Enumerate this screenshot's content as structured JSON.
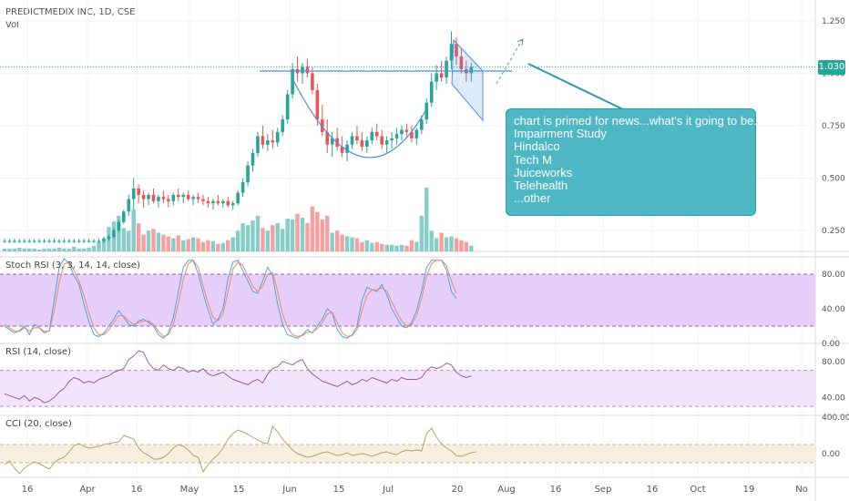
{
  "header": {
    "symbol_line": "PREDICTMEDIX INC, 1D, CSE",
    "volume_label": "Vol",
    "last_price": "1.030"
  },
  "annotation": {
    "lines": [
      "chart is primed for news...what's it going to be...",
      "Impairment Study",
      "Hindalco",
      "Tech M",
      "Juiceworks",
      "Telehealth",
      "...other"
    ]
  },
  "time_axis": {
    "labels": [
      "16",
      "Apr",
      "16",
      "May",
      "15",
      "Jun",
      "15",
      "Jul",
      "20",
      "Aug",
      "16",
      "Sep",
      "16",
      "Oct",
      "19",
      "No"
    ]
  },
  "colors": {
    "up": "#26a69a",
    "down": "#ef5350",
    "stoch_k": "#4aa3f0",
    "stoch_d": "#ef8a5a",
    "rsi": "#a05aa0",
    "cci": "#b5a26a",
    "band_purple": "#e6d0fb",
    "band_rsi": "#f1e4fb",
    "band_cci": "#f7efdf",
    "annotation": "#4db8c4"
  },
  "chart_data": [
    {
      "type": "candlestick",
      "title": "PREDICTMEDIX INC, 1D, CSE",
      "y_ticks": [
        "1.250",
        "1.000",
        "0.750",
        "0.500",
        "0.250"
      ],
      "ylim": [
        0.15,
        1.35
      ],
      "last_value": 1.03,
      "ohlc": [
        [
          0.2,
          0.21,
          0.19,
          0.2
        ],
        [
          0.2,
          0.21,
          0.19,
          0.2
        ],
        [
          0.2,
          0.21,
          0.19,
          0.2
        ],
        [
          0.2,
          0.21,
          0.19,
          0.2
        ],
        [
          0.2,
          0.21,
          0.19,
          0.2
        ],
        [
          0.2,
          0.21,
          0.19,
          0.2
        ],
        [
          0.2,
          0.21,
          0.19,
          0.2
        ],
        [
          0.2,
          0.21,
          0.19,
          0.2
        ],
        [
          0.2,
          0.21,
          0.19,
          0.2
        ],
        [
          0.2,
          0.21,
          0.19,
          0.2
        ],
        [
          0.2,
          0.21,
          0.19,
          0.2
        ],
        [
          0.2,
          0.21,
          0.19,
          0.2
        ],
        [
          0.2,
          0.21,
          0.19,
          0.2
        ],
        [
          0.2,
          0.21,
          0.19,
          0.2
        ],
        [
          0.2,
          0.21,
          0.19,
          0.2
        ],
        [
          0.2,
          0.21,
          0.19,
          0.2
        ],
        [
          0.2,
          0.21,
          0.19,
          0.2
        ],
        [
          0.2,
          0.21,
          0.19,
          0.2
        ],
        [
          0.2,
          0.21,
          0.19,
          0.2
        ],
        [
          0.2,
          0.21,
          0.19,
          0.2
        ],
        [
          0.2,
          0.22,
          0.19,
          0.21
        ],
        [
          0.21,
          0.23,
          0.2,
          0.22
        ],
        [
          0.22,
          0.26,
          0.21,
          0.25
        ],
        [
          0.25,
          0.3,
          0.24,
          0.29
        ],
        [
          0.29,
          0.35,
          0.28,
          0.34
        ],
        [
          0.34,
          0.42,
          0.32,
          0.4
        ],
        [
          0.4,
          0.5,
          0.35,
          0.45
        ],
        [
          0.45,
          0.47,
          0.38,
          0.42
        ],
        [
          0.42,
          0.44,
          0.36,
          0.4
        ],
        [
          0.4,
          0.43,
          0.37,
          0.42
        ],
        [
          0.42,
          0.45,
          0.38,
          0.39
        ],
        [
          0.39,
          0.42,
          0.36,
          0.41
        ],
        [
          0.41,
          0.44,
          0.38,
          0.4
        ],
        [
          0.4,
          0.42,
          0.36,
          0.39
        ],
        [
          0.39,
          0.43,
          0.37,
          0.42
        ],
        [
          0.42,
          0.45,
          0.39,
          0.41
        ],
        [
          0.41,
          0.43,
          0.38,
          0.42
        ],
        [
          0.42,
          0.44,
          0.39,
          0.4
        ],
        [
          0.4,
          0.42,
          0.37,
          0.41
        ],
        [
          0.41,
          0.43,
          0.38,
          0.4
        ],
        [
          0.4,
          0.42,
          0.37,
          0.39
        ],
        [
          0.39,
          0.41,
          0.36,
          0.38
        ],
        [
          0.38,
          0.4,
          0.35,
          0.39
        ],
        [
          0.39,
          0.42,
          0.37,
          0.38
        ],
        [
          0.38,
          0.4,
          0.36,
          0.39
        ],
        [
          0.39,
          0.41,
          0.36,
          0.37
        ],
        [
          0.37,
          0.39,
          0.35,
          0.38
        ],
        [
          0.38,
          0.44,
          0.37,
          0.43
        ],
        [
          0.43,
          0.5,
          0.41,
          0.48
        ],
        [
          0.48,
          0.58,
          0.46,
          0.56
        ],
        [
          0.56,
          0.64,
          0.53,
          0.62
        ],
        [
          0.62,
          0.72,
          0.6,
          0.7
        ],
        [
          0.7,
          0.75,
          0.64,
          0.66
        ],
        [
          0.66,
          0.71,
          0.63,
          0.68
        ],
        [
          0.68,
          0.73,
          0.64,
          0.67
        ],
        [
          0.67,
          0.74,
          0.65,
          0.72
        ],
        [
          0.72,
          0.8,
          0.7,
          0.78
        ],
        [
          0.78,
          0.92,
          0.76,
          0.9
        ],
        [
          0.9,
          1.05,
          0.88,
          1.02
        ],
        [
          1.02,
          1.08,
          0.96,
          1.0
        ],
        [
          1.0,
          1.05,
          0.95,
          1.03
        ],
        [
          1.03,
          1.07,
          0.98,
          1.0
        ],
        [
          1.0,
          1.03,
          0.9,
          0.92
        ],
        [
          0.92,
          0.95,
          0.75,
          0.78
        ],
        [
          0.78,
          0.85,
          0.7,
          0.72
        ],
        [
          0.72,
          0.78,
          0.62,
          0.66
        ],
        [
          0.66,
          0.72,
          0.6,
          0.69
        ],
        [
          0.69,
          0.74,
          0.63,
          0.65
        ],
        [
          0.65,
          0.7,
          0.6,
          0.62
        ],
        [
          0.62,
          0.68,
          0.58,
          0.66
        ],
        [
          0.66,
          0.72,
          0.64,
          0.7
        ],
        [
          0.7,
          0.75,
          0.66,
          0.68
        ],
        [
          0.68,
          0.72,
          0.63,
          0.65
        ],
        [
          0.65,
          0.7,
          0.62,
          0.68
        ],
        [
          0.68,
          0.74,
          0.66,
          0.72
        ],
        [
          0.72,
          0.76,
          0.68,
          0.7
        ],
        [
          0.7,
          0.73,
          0.64,
          0.66
        ],
        [
          0.66,
          0.7,
          0.62,
          0.68
        ],
        [
          0.68,
          0.72,
          0.64,
          0.69
        ],
        [
          0.69,
          0.74,
          0.66,
          0.71
        ],
        [
          0.71,
          0.75,
          0.68,
          0.73
        ],
        [
          0.73,
          0.76,
          0.7,
          0.72
        ],
        [
          0.72,
          0.75,
          0.67,
          0.69
        ],
        [
          0.69,
          0.74,
          0.66,
          0.73
        ],
        [
          0.73,
          0.8,
          0.71,
          0.78
        ],
        [
          0.78,
          0.88,
          0.76,
          0.86
        ],
        [
          0.86,
          1.0,
          0.84,
          0.96
        ],
        [
          0.96,
          1.04,
          0.92,
          1.0
        ],
        [
          1.0,
          1.06,
          0.96,
          0.98
        ],
        [
          0.98,
          1.08,
          0.95,
          1.06
        ],
        [
          1.06,
          1.2,
          1.02,
          1.14
        ],
        [
          1.14,
          1.17,
          1.04,
          1.08
        ],
        [
          1.08,
          1.12,
          1.0,
          1.02
        ],
        [
          1.02,
          1.06,
          0.96,
          1.0
        ],
        [
          1.0,
          1.05,
          0.96,
          1.03
        ]
      ]
    },
    {
      "type": "bar",
      "title": "Vol",
      "values": [
        3,
        3,
        3,
        4,
        3,
        3,
        3,
        2,
        3,
        3,
        3,
        4,
        3,
        3,
        5,
        3,
        3,
        4,
        6,
        10,
        14,
        26,
        32,
        38,
        25,
        22,
        45,
        30,
        18,
        22,
        24,
        20,
        18,
        16,
        14,
        17,
        12,
        13,
        15,
        14,
        10,
        12,
        11,
        8,
        9,
        12,
        15,
        22,
        30,
        28,
        33,
        38,
        25,
        22,
        28,
        30,
        24,
        35,
        34,
        40,
        36,
        30,
        48,
        42,
        34,
        38,
        20,
        22,
        18,
        16,
        15,
        14,
        10,
        12,
        9,
        10,
        8,
        7,
        7,
        6,
        7,
        6,
        12,
        10,
        38,
        68,
        22,
        14,
        20,
        15,
        16,
        14,
        12,
        10,
        6
      ]
    },
    {
      "type": "line",
      "title": "Stoch RSI (3, 3, 14, 14, close)",
      "y_ticks": [
        "80.00",
        "40.00",
        "0.00"
      ],
      "ylim": [
        0,
        100
      ],
      "bands": [
        20,
        80
      ],
      "series": [
        {
          "values": [
            20,
            16,
            12,
            15,
            20,
            10,
            22,
            18,
            12,
            15,
            50,
            88,
            98,
            92,
            78,
            68,
            45,
            25,
            10,
            8,
            12,
            20,
            28,
            38,
            30,
            22,
            20,
            26,
            28,
            24,
            20,
            10,
            6,
            12,
            30,
            60,
            88,
            96,
            96,
            80,
            58,
            38,
            22,
            28,
            40,
            75,
            94,
            96,
            84,
            72,
            60,
            58,
            72,
            88,
            78,
            45,
            22,
            10,
            8,
            6,
            10,
            16,
            12,
            20,
            28,
            40,
            35,
            16,
            8,
            6,
            10,
            20,
            50,
            65,
            62,
            60,
            68,
            56,
            40,
            30,
            20,
            18,
            24,
            38,
            60,
            88,
            96,
            96,
            96,
            85,
            60,
            52
          ]
        },
        {
          "values": [
            22,
            18,
            14,
            14,
            18,
            14,
            18,
            18,
            14,
            14,
            38,
            70,
            92,
            94,
            84,
            72,
            55,
            35,
            18,
            10,
            10,
            16,
            24,
            32,
            32,
            26,
            22,
            24,
            26,
            26,
            22,
            14,
            8,
            10,
            22,
            46,
            74,
            92,
            96,
            88,
            66,
            46,
            30,
            26,
            34,
            60,
            86,
            94,
            90,
            78,
            66,
            60,
            66,
            80,
            82,
            60,
            34,
            18,
            10,
            8,
            9,
            13,
            13,
            17,
            24,
            34,
            36,
            24,
            12,
            8,
            9,
            16,
            38,
            56,
            62,
            62,
            64,
            60,
            48,
            36,
            26,
            20,
            22,
            32,
            52,
            78,
            92,
            96,
            96,
            90,
            72,
            58
          ]
        }
      ]
    },
    {
      "type": "line",
      "title": "RSI (14, close)",
      "y_ticks": [
        "80.00",
        "40.00"
      ],
      "ylim": [
        20,
        100
      ],
      "bands": [
        30,
        70
      ],
      "series": [
        {
          "values": [
            44,
            42,
            40,
            38,
            42,
            36,
            40,
            38,
            34,
            36,
            40,
            46,
            50,
            58,
            62,
            60,
            56,
            58,
            56,
            60,
            62,
            64,
            68,
            70,
            72,
            82,
            86,
            92,
            90,
            78,
            72,
            70,
            76,
            72,
            70,
            74,
            72,
            68,
            70,
            68,
            72,
            66,
            64,
            66,
            68,
            64,
            60,
            58,
            56,
            54,
            58,
            60,
            56,
            66,
            72,
            74,
            80,
            78,
            76,
            80,
            82,
            72,
            66,
            62,
            58,
            56,
            54,
            52,
            55,
            58,
            54,
            56,
            60,
            58,
            62,
            60,
            58,
            56,
            60,
            58,
            62,
            60,
            60,
            60,
            62,
            70,
            74,
            72,
            74,
            78,
            76,
            68,
            64,
            62,
            64
          ]
        }
      ]
    },
    {
      "type": "line",
      "title": "CCI (20, close)",
      "y_ticks": [
        "400.00",
        "0.00"
      ],
      "ylim": [
        -260,
        420
      ],
      "bands": [
        -100,
        100
      ],
      "series": [
        {
          "values": [
            -120,
            -80,
            -160,
            -220,
            -160,
            -120,
            -90,
            -110,
            -140,
            -170,
            -100,
            -60,
            -40,
            20,
            90,
            110,
            80,
            60,
            70,
            80,
            100,
            110,
            120,
            130,
            200,
            180,
            160,
            60,
            10,
            -20,
            -60,
            -60,
            -40,
            0,
            60,
            100,
            80,
            40,
            -20,
            -40,
            -200,
            -120,
            -60,
            -10,
            60,
            160,
            220,
            260,
            240,
            210,
            180,
            150,
            120,
            110,
            300,
            240,
            160,
            100,
            40,
            0,
            -20,
            -40,
            -30,
            -10,
            10,
            20,
            0,
            -20,
            -10,
            10,
            -20,
            -10,
            0,
            -10,
            -30,
            -10,
            10,
            20,
            0,
            -10,
            20,
            40,
            30,
            40,
            30,
            220,
            280,
            180,
            110,
            60,
            30,
            -20,
            -30,
            -10,
            10,
            20
          ]
        }
      ]
    }
  ]
}
